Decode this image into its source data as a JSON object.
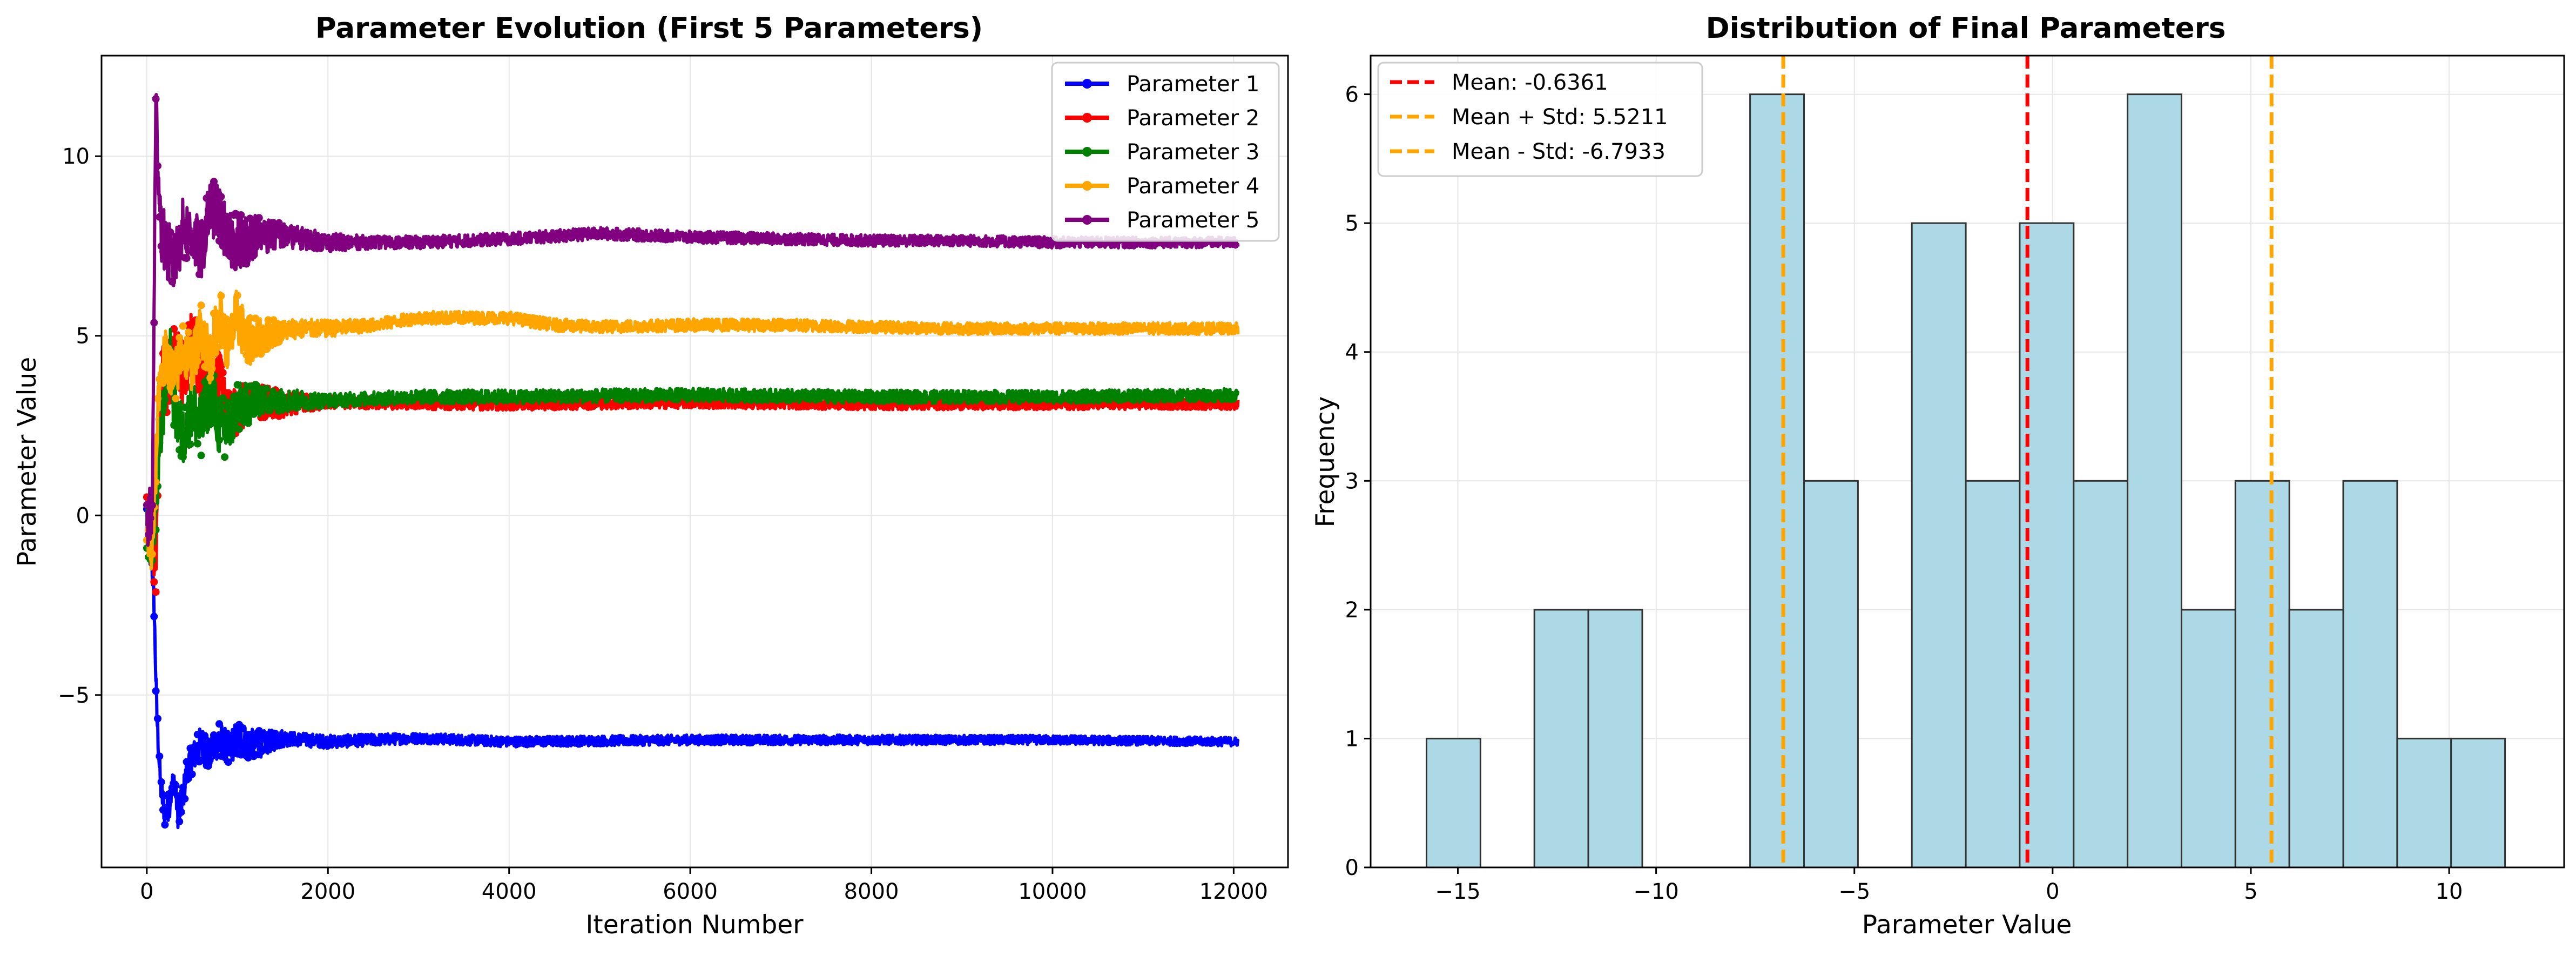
{
  "colors": {
    "p1": "#0000ff",
    "p2": "#ff0000",
    "p3": "#008000",
    "p4": "#ffa500",
    "p5": "#800080",
    "hist_fill": "#add8e6",
    "mean_line": "#ff0000",
    "std_line": "#ffa500",
    "grid": "#e6e6e6"
  },
  "chart_data": [
    {
      "type": "line",
      "title": "Parameter Evolution (First 5 Parameters)",
      "xlabel": "Iteration Number",
      "ylabel": "Parameter Value",
      "xlim": [
        -500,
        12600
      ],
      "ylim": [
        -9.8,
        12.8
      ],
      "xticks": [
        0,
        2000,
        4000,
        6000,
        8000,
        10000,
        12000
      ],
      "yticks": [
        -5,
        0,
        5,
        10
      ],
      "grid": true,
      "legend": "top-right",
      "series": [
        {
          "name": "Parameter 1",
          "color_key": "p1",
          "keypoints": [
            [
              0,
              0
            ],
            [
              40,
              -0.5
            ],
            [
              80,
              -2.5
            ],
            [
              110,
              -5.5
            ],
            [
              150,
              -7.5
            ],
            [
              200,
              -8.3
            ],
            [
              250,
              -8.0
            ],
            [
              300,
              -7.3
            ],
            [
              350,
              -8.4
            ],
            [
              400,
              -7.8
            ],
            [
              450,
              -7.0
            ],
            [
              500,
              -6.8
            ],
            [
              600,
              -6.3
            ],
            [
              700,
              -6.7
            ],
            [
              800,
              -6.2
            ],
            [
              900,
              -6.5
            ],
            [
              1000,
              -6.2
            ],
            [
              1200,
              -6.4
            ],
            [
              1500,
              -6.2
            ],
            [
              2000,
              -6.3
            ],
            [
              3000,
              -6.2
            ],
            [
              4000,
              -6.3
            ],
            [
              6000,
              -6.25
            ],
            [
              8000,
              -6.25
            ],
            [
              10000,
              -6.25
            ],
            [
              12050,
              -6.3
            ]
          ],
          "amp": [
            [
              0,
              0.4
            ],
            [
              1000,
              0.5
            ],
            [
              1600,
              0.2
            ],
            [
              3000,
              0.15
            ],
            [
              12050,
              0.12
            ]
          ]
        },
        {
          "name": "Parameter 2",
          "color_key": "p2",
          "keypoints": [
            [
              0,
              -0.2
            ],
            [
              60,
              -0.6
            ],
            [
              100,
              -1.5
            ],
            [
              130,
              2.0
            ],
            [
              170,
              4.0
            ],
            [
              220,
              3.5
            ],
            [
              300,
              4.5
            ],
            [
              400,
              4.0
            ],
            [
              500,
              4.8
            ],
            [
              600,
              4.0
            ],
            [
              700,
              3.3
            ],
            [
              800,
              3.8
            ],
            [
              900,
              2.8
            ],
            [
              1000,
              2.9
            ],
            [
              1200,
              3.2
            ],
            [
              1500,
              3.1
            ],
            [
              2000,
              3.15
            ],
            [
              4000,
              3.1
            ],
            [
              6000,
              3.15
            ],
            [
              8000,
              3.1
            ],
            [
              12050,
              3.1
            ]
          ],
          "amp": [
            [
              0,
              0.8
            ],
            [
              600,
              1.0
            ],
            [
              1200,
              0.5
            ],
            [
              2000,
              0.18
            ],
            [
              12050,
              0.15
            ]
          ]
        },
        {
          "name": "Parameter 3",
          "color_key": "p3",
          "keypoints": [
            [
              0,
              -0.3
            ],
            [
              60,
              -0.8
            ],
            [
              100,
              0.2
            ],
            [
              150,
              2.0
            ],
            [
              200,
              3.5
            ],
            [
              260,
              4.5
            ],
            [
              300,
              3.0
            ],
            [
              400,
              2.2
            ],
            [
              500,
              3.0
            ],
            [
              600,
              2.5
            ],
            [
              700,
              3.4
            ],
            [
              800,
              2.5
            ],
            [
              900,
              2.4
            ],
            [
              1000,
              3.0
            ],
            [
              1200,
              3.2
            ],
            [
              1500,
              3.2
            ],
            [
              2000,
              3.2
            ],
            [
              3000,
              3.3
            ],
            [
              4000,
              3.3
            ],
            [
              6000,
              3.35
            ],
            [
              8000,
              3.3
            ],
            [
              10000,
              3.3
            ],
            [
              12050,
              3.35
            ]
          ],
          "amp": [
            [
              0,
              0.8
            ],
            [
              800,
              0.9
            ],
            [
              1300,
              0.4
            ],
            [
              2000,
              0.2
            ],
            [
              12050,
              0.18
            ]
          ]
        },
        {
          "name": "Parameter 4",
          "color_key": "p4",
          "keypoints": [
            [
              0,
              -0.4
            ],
            [
              60,
              -1.2
            ],
            [
              90,
              0.5
            ],
            [
              130,
              3.5
            ],
            [
              200,
              4.5
            ],
            [
              300,
              3.8
            ],
            [
              400,
              4.6
            ],
            [
              500,
              4.2
            ],
            [
              600,
              5.2
            ],
            [
              700,
              4.4
            ],
            [
              800,
              5.6
            ],
            [
              900,
              4.6
            ],
            [
              1000,
              5.6
            ],
            [
              1100,
              4.8
            ],
            [
              1300,
              5.0
            ],
            [
              1600,
              5.2
            ],
            [
              2000,
              5.2
            ],
            [
              2500,
              5.3
            ],
            [
              3000,
              5.5
            ],
            [
              3500,
              5.5
            ],
            [
              4000,
              5.5
            ],
            [
              4500,
              5.3
            ],
            [
              5000,
              5.25
            ],
            [
              6000,
              5.3
            ],
            [
              7000,
              5.3
            ],
            [
              8000,
              5.25
            ],
            [
              9000,
              5.2
            ],
            [
              10000,
              5.2
            ],
            [
              12050,
              5.2
            ]
          ],
          "amp": [
            [
              0,
              0.7
            ],
            [
              1000,
              0.8
            ],
            [
              1500,
              0.3
            ],
            [
              2500,
              0.18
            ],
            [
              12050,
              0.16
            ]
          ]
        },
        {
          "name": "Parameter 5",
          "color_key": "p5",
          "keypoints": [
            [
              0,
              0
            ],
            [
              60,
              -0.2
            ],
            [
              80,
              6.0
            ],
            [
              100,
              11.5
            ],
            [
              130,
              9.5
            ],
            [
              160,
              8.0
            ],
            [
              200,
              7.5
            ],
            [
              300,
              7.0
            ],
            [
              400,
              8.0
            ],
            [
              500,
              7.8
            ],
            [
              600,
              7.3
            ],
            [
              700,
              8.6
            ],
            [
              800,
              8.4
            ],
            [
              900,
              7.6
            ],
            [
              1000,
              7.6
            ],
            [
              1200,
              7.8
            ],
            [
              1500,
              7.8
            ],
            [
              2000,
              7.6
            ],
            [
              3000,
              7.6
            ],
            [
              4000,
              7.7
            ],
            [
              5000,
              7.85
            ],
            [
              6000,
              7.75
            ],
            [
              7000,
              7.7
            ],
            [
              8000,
              7.65
            ],
            [
              9000,
              7.65
            ],
            [
              10000,
              7.6
            ],
            [
              11000,
              7.6
            ],
            [
              12050,
              7.6
            ]
          ],
          "amp": [
            [
              0,
              0.9
            ],
            [
              1000,
              0.8
            ],
            [
              1500,
              0.35
            ],
            [
              2500,
              0.18
            ],
            [
              12050,
              0.15
            ]
          ]
        }
      ]
    },
    {
      "type": "bar",
      "subtype": "histogram",
      "title": "Distribution of Final Parameters",
      "xlabel": "Parameter Value",
      "ylabel": "Frequency",
      "xlim": [
        -17.2,
        12.9
      ],
      "ylim": [
        0,
        6.3
      ],
      "xticks": [
        -15,
        -10,
        -5,
        0,
        5,
        10
      ],
      "yticks": [
        0,
        1,
        2,
        3,
        4,
        5,
        6
      ],
      "grid": true,
      "legend": "top-left",
      "bin_edges": [
        -15.79,
        -14.43,
        -13.07,
        -11.71,
        -10.35,
        -8.99,
        -7.63,
        -6.27,
        -4.91,
        -3.55,
        -2.19,
        -0.83,
        0.53,
        1.89,
        3.25,
        4.61,
        5.97,
        7.33,
        8.69,
        10.05,
        11.41
      ],
      "counts": [
        1,
        0,
        2,
        2,
        0,
        0,
        6,
        3,
        0,
        5,
        3,
        5,
        3,
        6,
        2,
        3,
        2,
        3,
        1,
        1
      ],
      "vlines": [
        {
          "label": "Mean: -0.6361",
          "value": -0.6361,
          "color_key": "mean_line"
        },
        {
          "label": "Mean + Std: 5.5211",
          "value": 5.5211,
          "color_key": "std_line"
        },
        {
          "label": "Mean - Std: -6.7933",
          "value": -6.7933,
          "color_key": "std_line"
        }
      ]
    }
  ]
}
